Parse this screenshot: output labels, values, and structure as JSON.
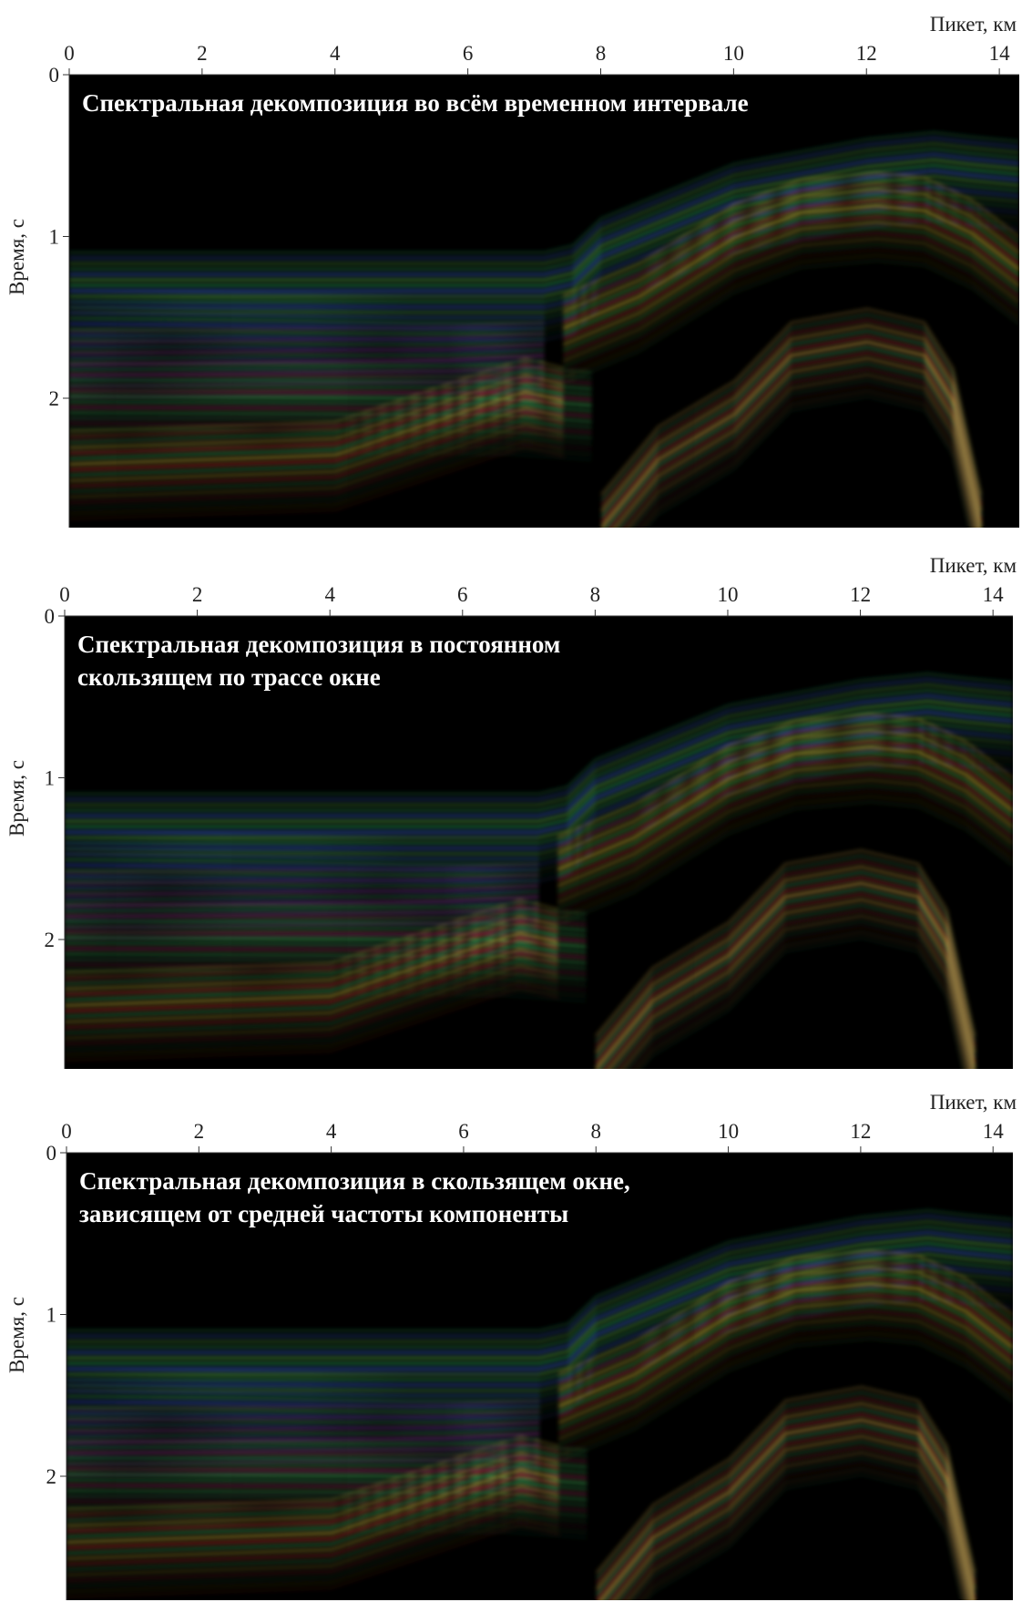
{
  "chart_data": [
    {
      "type": "seismic-section",
      "title_lines": [
        "Спектральная декомпозиция во всём временном интервале"
      ],
      "xlabel": "Пикет, км",
      "ylabel": "Время, с",
      "xlim": [
        0,
        14.3
      ],
      "xticks": [
        0,
        2,
        4,
        6,
        8,
        10,
        12,
        14
      ],
      "ylim": [
        0,
        2.8
      ],
      "yticks": [
        0,
        1,
        2
      ]
    },
    {
      "type": "seismic-section",
      "title_lines": [
        "Спектральная декомпозиция в постоянном",
        "скользящем по трассе окне"
      ],
      "xlabel": "Пикет, км",
      "ylabel": "Время, с",
      "xlim": [
        0,
        14.3
      ],
      "xticks": [
        0,
        2,
        4,
        6,
        8,
        10,
        12,
        14
      ],
      "ylim": [
        0,
        2.8
      ],
      "yticks": [
        0,
        1,
        2
      ]
    },
    {
      "type": "seismic-section",
      "title_lines": [
        "Спектральная декомпозиция в скользящем окне,",
        "зависящем от средней частоты компоненты"
      ],
      "xlabel": "Пикет, км",
      "ylabel": "Время, с",
      "xlim": [
        0,
        14.3
      ],
      "xticks": [
        0,
        2,
        4,
        6,
        8,
        10,
        12,
        14
      ],
      "ylim": [
        0,
        2.8
      ],
      "yticks": [
        0,
        1,
        2
      ]
    }
  ]
}
